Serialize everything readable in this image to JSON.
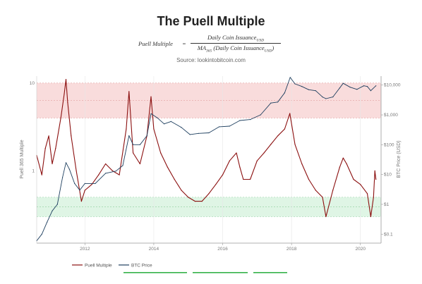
{
  "header": {
    "title": "The Puell Multiple",
    "formula_lhs": "Puell Multiple",
    "formula_eq": "=",
    "formula_num": "Daily Coin Issuance",
    "formula_num_sub": "USD",
    "formula_den_prefix": "MA",
    "formula_den_prefix_sub": "365",
    "formula_den_body": " (Daily Coin Issuance",
    "formula_den_sub": "USD",
    "formula_den_close": ")",
    "source": "Source: lookintobitcoin.com"
  },
  "chart_data": {
    "type": "line",
    "ylabel_left": "Puell 365 Multiple",
    "ylabel_right": "BTC Price (USD)",
    "xlim": [
      2010.6,
      2020.6
    ],
    "left_axis": {
      "scale": "log",
      "range": [
        0.15,
        12
      ],
      "ticks": [
        {
          "v": 10,
          "label": "10"
        },
        {
          "v": 1,
          "label": "1"
        }
      ]
    },
    "right_axis": {
      "scale": "log",
      "range": [
        0.05,
        20000
      ],
      "ticks": [
        {
          "v": 10000,
          "label": "$10,000"
        },
        {
          "v": 1000,
          "label": "$1,000"
        },
        {
          "v": 100,
          "label": "$100"
        },
        {
          "v": 10,
          "label": "$10"
        },
        {
          "v": 1,
          "label": "$1"
        },
        {
          "v": 0.1,
          "label": "$0.1"
        }
      ]
    },
    "x_ticks": [
      {
        "v": 2012,
        "label": "2012"
      },
      {
        "v": 2014,
        "label": "2014"
      },
      {
        "v": 2016,
        "label": "2016"
      },
      {
        "v": 2018,
        "label": "2018"
      },
      {
        "v": 2020,
        "label": "2020"
      }
    ],
    "bands": [
      {
        "from": 4,
        "to": 10,
        "color": "#f8d6d6",
        "line": "#e3a0a0"
      },
      {
        "from": 0.3,
        "to": 0.5,
        "color": "#d9f3e1",
        "line": "#8dcf9e"
      }
    ],
    "colors": {
      "puell": "#8b0f0f",
      "btc": "#1e3f5f",
      "bottom_bar": "#35b24a"
    },
    "series": [
      {
        "name": "Puell Multiple",
        "axis": "left",
        "x": [
          2010.6,
          2010.75,
          2010.85,
          2010.95,
          2011.05,
          2011.15,
          2011.3,
          2011.4,
          2011.45,
          2011.5,
          2011.6,
          2011.75,
          2011.9,
          2012.0,
          2012.2,
          2012.4,
          2012.6,
          2012.8,
          2013.0,
          2013.2,
          2013.28,
          2013.4,
          2013.6,
          2013.8,
          2013.92,
          2014.0,
          2014.2,
          2014.4,
          2014.6,
          2014.8,
          2015.0,
          2015.2,
          2015.4,
          2015.6,
          2015.8,
          2016.0,
          2016.2,
          2016.4,
          2016.5,
          2016.6,
          2016.8,
          2017.0,
          2017.2,
          2017.4,
          2017.6,
          2017.8,
          2017.95,
          2018.1,
          2018.3,
          2018.5,
          2018.7,
          2018.9,
          2019.0,
          2019.2,
          2019.4,
          2019.5,
          2019.6,
          2019.8,
          2020.0,
          2020.2,
          2020.3,
          2020.38,
          2020.42,
          2020.45
        ],
        "values": [
          1.5,
          0.9,
          1.8,
          2.5,
          1.2,
          1.8,
          4.0,
          7.5,
          11.0,
          6.0,
          2.5,
          1.0,
          0.45,
          0.6,
          0.7,
          0.9,
          1.2,
          1.0,
          0.9,
          3.0,
          8.0,
          1.6,
          1.2,
          2.5,
          7.0,
          3.0,
          1.6,
          1.1,
          0.8,
          0.6,
          0.5,
          0.45,
          0.45,
          0.55,
          0.7,
          0.9,
          1.3,
          1.6,
          1.1,
          0.8,
          0.8,
          1.3,
          1.6,
          2.0,
          2.5,
          3.0,
          4.5,
          2.0,
          1.2,
          0.8,
          0.6,
          0.5,
          0.3,
          0.6,
          1.1,
          1.4,
          1.2,
          0.8,
          0.7,
          0.55,
          0.3,
          0.5,
          1.0,
          0.8
        ]
      },
      {
        "name": "BTC Price",
        "axis": "right",
        "x": [
          2010.6,
          2010.75,
          2010.9,
          2011.05,
          2011.2,
          2011.35,
          2011.45,
          2011.55,
          2011.7,
          2011.85,
          2012.0,
          2012.3,
          2012.6,
          2012.9,
          2013.1,
          2013.28,
          2013.4,
          2013.6,
          2013.8,
          2013.92,
          2014.1,
          2014.3,
          2014.5,
          2014.8,
          2015.05,
          2015.3,
          2015.6,
          2015.9,
          2016.2,
          2016.5,
          2016.8,
          2017.1,
          2017.4,
          2017.6,
          2017.8,
          2017.96,
          2018.1,
          2018.3,
          2018.5,
          2018.7,
          2018.9,
          2019.0,
          2019.2,
          2019.4,
          2019.5,
          2019.7,
          2019.9,
          2020.1,
          2020.2,
          2020.3,
          2020.45
        ],
        "values": [
          0.06,
          0.1,
          0.25,
          0.6,
          1.0,
          8.0,
          25.0,
          15.0,
          5.0,
          3.0,
          5.0,
          5.0,
          11.0,
          13.0,
          20.0,
          200.0,
          100.0,
          100.0,
          200.0,
          1100.0,
          800.0,
          500.0,
          600.0,
          380.0,
          220.0,
          240.0,
          250.0,
          400.0,
          420.0,
          650.0,
          700.0,
          1000.0,
          2500.0,
          2700.0,
          5500.0,
          18000.0,
          11000.0,
          9000.0,
          7000.0,
          6500.0,
          4000.0,
          3500.0,
          4000.0,
          8000.0,
          11500.0,
          8500.0,
          7200.0,
          9500.0,
          9000.0,
          6500.0,
          9500.0
        ]
      }
    ],
    "legend": [
      "Puell Multiple",
      "BTC Price"
    ],
    "legend_placement": "bottom"
  }
}
